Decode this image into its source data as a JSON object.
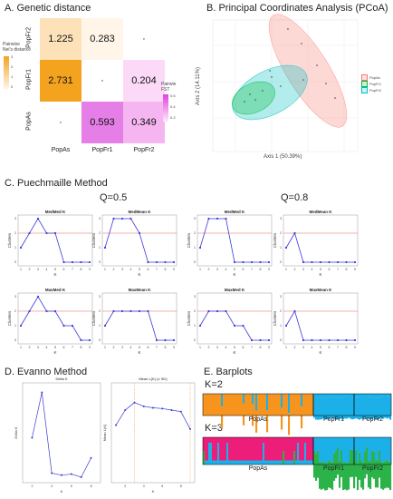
{
  "panels": {
    "a_title": "A. Genetic distance",
    "b_title": "B. Principal Coordinates Analysis (PCoA)",
    "c_title": "C. Puechmaille Method",
    "d_title": "D. Evanno Method",
    "e_title": "E. Barplots"
  },
  "heatmap": {
    "rows": [
      "PopFr2",
      "PopFr1",
      "PopAs"
    ],
    "cols": [
      "PopAs",
      "PopFr1",
      "PopFr2"
    ],
    "cells": [
      [
        "1.225",
        "0.283",
        "·"
      ],
      [
        "2.731",
        "·",
        "0.204"
      ],
      [
        "·",
        "0.593",
        "0.349"
      ]
    ],
    "colors": [
      [
        "#fde2b9",
        "#fff6e9",
        "#ffffff"
      ],
      [
        "#f4a31f",
        "#ffffff",
        "#fbd9f7"
      ],
      [
        "#ffffff",
        "#e57ee6",
        "#f5b5f0"
      ]
    ],
    "legend_left": {
      "title1": "Pairwise",
      "title2": "Nei's distance",
      "ticks": [
        "3",
        "2",
        "1",
        "0"
      ],
      "gradient": [
        "#f4a31f",
        "#fff6e9"
      ]
    },
    "legend_right": {
      "title1": "Pairwie",
      "title2": "FST",
      "ticks": [
        "0.6",
        "0.4",
        "0.2"
      ],
      "gradient": [
        "#e040e0",
        "#fdeafc"
      ]
    }
  },
  "pcoa": {
    "xlabel": "Axis 1 (50.39%)",
    "ylabel": "Axis 2 (14.11%)",
    "legend": [
      {
        "name": "PopAs",
        "color": "#f8766d"
      },
      {
        "name": "PopFr1",
        "color": "#00ba38"
      },
      {
        "name": "PopFr2",
        "color": "#00bfc4"
      }
    ]
  },
  "puechmaille": {
    "q_labels": [
      "Q=0.5",
      "Q=0.8"
    ],
    "xlabel": "K",
    "ylabel": "Clusters",
    "k": [
      1,
      2,
      3,
      4,
      5,
      6,
      7,
      8,
      9
    ],
    "xticks": [
      "1",
      "2",
      "3",
      "4",
      "5",
      "6",
      "7",
      "8",
      "9"
    ],
    "yticks": [
      "0",
      "1",
      "2",
      "3"
    ],
    "refline": 2,
    "subplots": [
      {
        "title": "MedMed K",
        "values": [
          1,
          2,
          3,
          2,
          2,
          0,
          0,
          0,
          0
        ]
      },
      {
        "title": "MedMean K",
        "values": [
          1,
          3,
          3,
          3,
          2,
          0,
          0,
          0,
          0
        ]
      },
      {
        "title": "MedMed K",
        "values": [
          1,
          3,
          3,
          3,
          0,
          0,
          0,
          0,
          0
        ]
      },
      {
        "title": "MedMean K",
        "values": [
          1,
          2,
          0,
          0,
          0,
          0,
          0,
          0,
          0
        ]
      },
      {
        "title": "MaxMed K",
        "values": [
          1,
          2,
          3,
          2,
          2,
          1,
          1,
          0,
          0
        ]
      },
      {
        "title": "MaxMean K",
        "values": [
          1,
          2,
          2,
          2,
          2,
          2,
          0,
          0,
          0
        ]
      },
      {
        "title": "MaxMed K",
        "values": [
          1,
          2,
          2,
          2,
          1,
          1,
          0,
          0,
          0
        ]
      },
      {
        "title": "MaxMean K",
        "values": [
          1,
          2,
          0,
          0,
          0,
          0,
          0,
          0,
          0
        ]
      }
    ]
  },
  "evanno": {
    "delta": {
      "title": "Delta K",
      "xlabel": "K",
      "ylabel": "Delta K",
      "x": [
        2,
        3,
        4,
        5,
        6,
        7,
        8
      ],
      "values": [
        40,
        85,
        5,
        3,
        4,
        1,
        20
      ],
      "ylim": [
        0,
        90
      ],
      "xticks": [
        "2",
        "4",
        "6",
        "8"
      ]
    },
    "meanln": {
      "title": "Mean L(K) (± SD)",
      "xlabel": "K",
      "ylabel": "Mean L(K)",
      "x": [
        1,
        2,
        3,
        4,
        5,
        6,
        7,
        8,
        9
      ],
      "values": [
        -3500,
        -3300,
        -3200,
        -3250,
        -3270,
        -3280,
        -3300,
        -3320,
        -3550
      ],
      "ylim": [
        -4200,
        -3000
      ],
      "xticks": [
        "2",
        "4",
        "6",
        "8"
      ]
    }
  },
  "barplots": {
    "k2_label": "K=2",
    "k3_label": "K=3",
    "pop_labels": [
      "PopAs",
      "PopFr1",
      "PopFr2"
    ],
    "k2_colors": [
      "#f7941d",
      "#1bb0e8"
    ],
    "k3_colors": [
      "#ec1e79",
      "#1bb0e8",
      "#2bb34a"
    ]
  }
}
